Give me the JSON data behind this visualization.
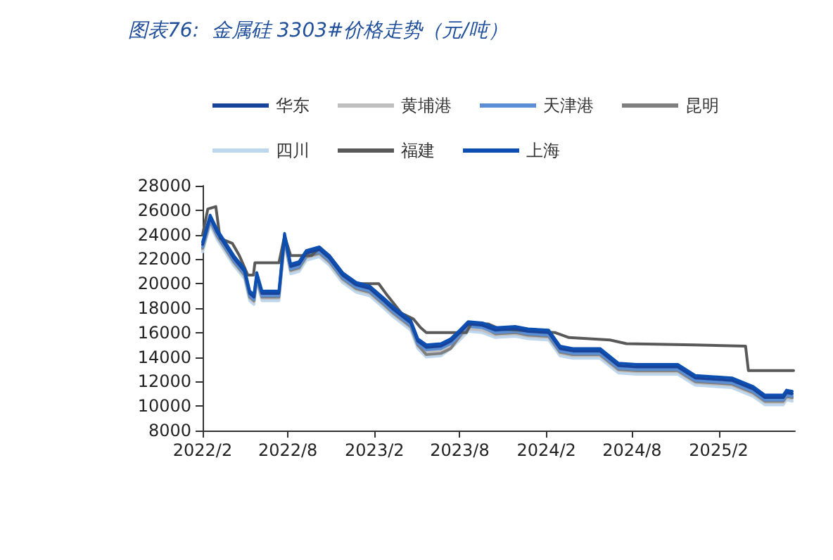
{
  "chart_data": {
    "type": "line",
    "title": "图表76:  金属硅 3303#价格走势（元/吨）",
    "x": [
      "2022-02-01",
      "2022-02-17",
      "2022-03-04",
      "2022-04-08",
      "2022-05-01",
      "2022-05-12",
      "2022-05-21",
      "2022-05-27",
      "2022-06-07",
      "2022-07-13",
      "2022-07-25",
      "2022-08-07",
      "2022-08-25",
      "2022-09-09",
      "2022-10-07",
      "2022-10-28",
      "2022-11-25",
      "2022-12-24",
      "2023-01-22",
      "2023-02-21",
      "2023-03-13",
      "2023-04-19",
      "2023-05-04",
      "2023-05-22",
      "2023-06-22",
      "2023-07-13",
      "2023-08-01",
      "2023-08-19",
      "2023-09-18",
      "2023-10-16",
      "2023-11-28",
      "2023-12-24",
      "2024-02-06",
      "2024-03-01",
      "2024-03-28",
      "2024-05-25",
      "2024-07-03",
      "2024-08-10",
      "2024-11-06",
      "2024-12-13",
      "2025-03-01",
      "2025-04-15",
      "2025-05-10",
      "2025-06-18",
      "2025-06-25",
      "2025-07-07"
    ],
    "series": [
      {
        "name": "华东",
        "color": "#17449a",
        "values": [
          23200,
          25400,
          24200,
          22100,
          21000,
          19200,
          18900,
          20700,
          19200,
          19200,
          23900,
          21400,
          21600,
          22500,
          22800,
          22100,
          20700,
          19900,
          19600,
          18600,
          17900,
          16800,
          15300,
          14800,
          14900,
          15300,
          16000,
          16700,
          16600,
          16200,
          16300,
          16100,
          16000,
          14700,
          14500,
          14500,
          13300,
          13200,
          13200,
          12300,
          12100,
          11400,
          10700,
          10700,
          11100,
          11000
        ]
      },
      {
        "name": "黄埔港",
        "color": "#bfbfbf",
        "values": [
          22800,
          25000,
          23800,
          21700,
          20600,
          18800,
          18500,
          20300,
          18800,
          18800,
          23500,
          21000,
          21200,
          22100,
          22400,
          21700,
          20300,
          19500,
          19200,
          18200,
          17500,
          16400,
          14900,
          14400,
          14500,
          14900,
          15600,
          16300,
          16200,
          15800,
          15900,
          15700,
          15600,
          14300,
          14100,
          14100,
          12900,
          12800,
          12800,
          11900,
          11700,
          11000,
          10300,
          10300,
          10700,
          10600
        ]
      },
      {
        "name": "天津港",
        "color": "#5b8fd4",
        "values": [
          23000,
          25200,
          24000,
          21900,
          20800,
          19000,
          18700,
          20500,
          19000,
          19000,
          23700,
          21200,
          21400,
          22300,
          22600,
          21900,
          20500,
          19700,
          19400,
          18400,
          17700,
          16600,
          15100,
          14600,
          14700,
          15100,
          15800,
          16500,
          16400,
          16000,
          16100,
          15900,
          15800,
          14500,
          14300,
          14300,
          13100,
          13000,
          13000,
          12100,
          11900,
          11200,
          10500,
          10500,
          10900,
          10800
        ]
      },
      {
        "name": "昆明",
        "color": "#7f7f7f",
        "values": [
          22900,
          25100,
          23900,
          21800,
          20700,
          18900,
          18600,
          20400,
          18900,
          18900,
          23600,
          21100,
          21300,
          22200,
          22500,
          21800,
          20400,
          19600,
          19300,
          18300,
          17600,
          16500,
          15000,
          14200,
          14300,
          14700,
          15700,
          16600,
          16500,
          15900,
          16000,
          15800,
          15700,
          14400,
          14200,
          14200,
          13000,
          12900,
          12900,
          12000,
          11800,
          11100,
          10400,
          10400,
          10800,
          10700
        ]
      },
      {
        "name": "四川",
        "color": "#bdd7ee",
        "values": [
          22600,
          24800,
          23600,
          21500,
          20400,
          18600,
          18300,
          20100,
          18600,
          18600,
          23300,
          20800,
          21000,
          21900,
          22200,
          21500,
          20100,
          19300,
          19000,
          18000,
          17300,
          16200,
          14700,
          14000,
          14100,
          14700,
          15400,
          16100,
          16000,
          15600,
          15700,
          15500,
          15400,
          14100,
          13900,
          13900,
          12700,
          12600,
          12600,
          11700,
          11500,
          10800,
          10100,
          10100,
          10500,
          10400
        ]
      },
      {
        "name": "福建",
        "color": "#595959",
        "x": [
          "2022-02-01",
          "2022-02-12",
          "2022-03-01",
          "2022-03-10",
          "2022-04-05",
          "2022-04-20",
          "2022-05-08",
          "2022-05-20",
          "2022-05-23",
          "2022-07-13",
          "2022-07-25",
          "2022-08-07",
          "2022-09-20",
          "2022-10-07",
          "2022-10-28",
          "2022-11-25",
          "2022-12-20",
          "2023-02-10",
          "2023-03-01",
          "2023-03-30",
          "2023-04-25",
          "2023-05-10",
          "2023-05-22",
          "2023-08-15",
          "2023-08-25",
          "2023-10-01",
          "2023-10-25",
          "2024-02-20",
          "2024-03-20",
          "2024-06-15",
          "2024-07-20",
          "2024-12-10",
          "2025-03-30",
          "2025-04-05",
          "2025-07-10"
        ],
        "values": [
          24000,
          26100,
          26300,
          23700,
          23300,
          22300,
          20700,
          20700,
          21700,
          21700,
          23900,
          22300,
          22300,
          22900,
          22300,
          20900,
          20000,
          20000,
          19000,
          17600,
          17100,
          16400,
          16000,
          16000,
          16700,
          16700,
          16300,
          16000,
          15600,
          15400,
          15100,
          15000,
          14900,
          12900,
          12900
        ]
      },
      {
        "name": "上海",
        "color": "#0d4fb0",
        "values": [
          23400,
          25600,
          24400,
          22300,
          21200,
          19400,
          19100,
          20900,
          19400,
          19400,
          24100,
          21600,
          21800,
          22700,
          23000,
          22300,
          20900,
          20100,
          19800,
          18800,
          18100,
          17000,
          15500,
          15000,
          15100,
          15500,
          16200,
          16900,
          16800,
          16400,
          16500,
          16300,
          16200,
          14900,
          14700,
          14700,
          13500,
          13400,
          13400,
          12500,
          12300,
          11600,
          10900,
          10900,
          11300,
          11200
        ]
      }
    ],
    "xlim": [
      "2022-02-01",
      "2025-07-13"
    ],
    "xticks": [
      {
        "value": "2022-02-01",
        "label": "2022/2"
      },
      {
        "value": "2022-08-01",
        "label": "2022/8"
      },
      {
        "value": "2023-02-01",
        "label": "2023/2"
      },
      {
        "value": "2023-08-01",
        "label": "2023/8"
      },
      {
        "value": "2024-02-01",
        "label": "2024/2"
      },
      {
        "value": "2024-08-01",
        "label": "2024/8"
      },
      {
        "value": "2025-02-01",
        "label": "2025/2"
      }
    ],
    "ylim": [
      8000,
      28000
    ],
    "yticks": [
      8000,
      10000,
      12000,
      14000,
      16000,
      18000,
      20000,
      22000,
      24000,
      26000,
      28000
    ],
    "grid": false,
    "legend": "top",
    "marker": "none",
    "line_style": "solid"
  }
}
